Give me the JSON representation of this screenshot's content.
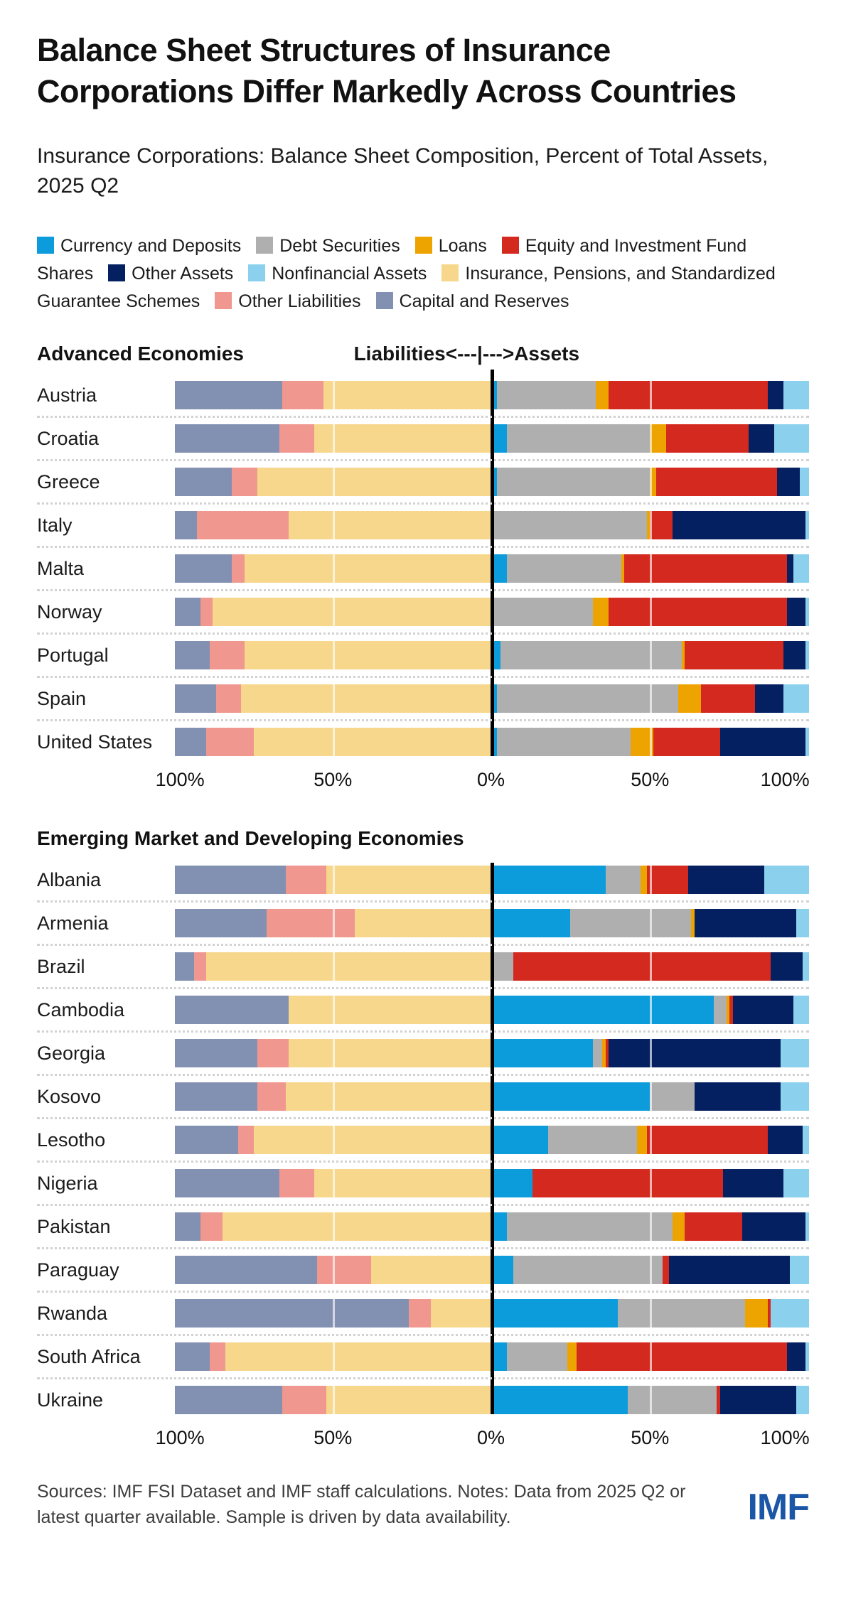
{
  "title": "Balance Sheet Structures of Insurance Corporations Differ Markedly Across Countries",
  "subtitle": "Insurance Corporations: Balance Sheet Composition, Percent of Total Assets, 2025 Q2",
  "legend": [
    {
      "key": "currency_deposits",
      "label": "Currency and Deposits",
      "color": "#0C9CDB"
    },
    {
      "key": "debt_securities",
      "label": "Debt Securities",
      "color": "#AFAFAF"
    },
    {
      "key": "loans",
      "label": "Loans",
      "color": "#EEA400"
    },
    {
      "key": "equity_investment",
      "label": "Equity and Investment Fund Shares",
      "color": "#D4291E"
    },
    {
      "key": "other_assets",
      "label": "Other Assets",
      "color": "#042061"
    },
    {
      "key": "nonfinancial_assets",
      "label": "Nonfinancial Assets",
      "color": "#8BD1EE"
    },
    {
      "key": "insurance_pensions",
      "label": "Insurance, Pensions, and Standardized Guarantee Schemes",
      "color": "#F7D78C"
    },
    {
      "key": "other_liabilities",
      "label": "Other Liabilities",
      "color": "#F0978F"
    },
    {
      "key": "capital_reserves",
      "label": "Capital and Reserves",
      "color": "#8290B2"
    }
  ],
  "center_axis_label": "Liabilities<---|--->Assets",
  "axis_ticks": [
    "100%",
    "50%",
    "0%",
    "50%",
    "100%"
  ],
  "chart_data": {
    "type": "bar",
    "variant": "diverging-stacked-horizontal",
    "unit": "percent of total assets",
    "xlim_liabilities": [
      100,
      0
    ],
    "xlim_assets": [
      0,
      100
    ],
    "grid": "50% white gridlines, black zero divider, dotted row separators",
    "liability_stack_order": [
      "capital_reserves",
      "other_liabilities",
      "insurance_pensions"
    ],
    "asset_stack_order": [
      "currency_deposits",
      "debt_securities",
      "loans",
      "equity_investment",
      "other_assets",
      "nonfinancial_assets"
    ],
    "groups": [
      {
        "name": "Advanced Economies",
        "rows": [
          {
            "country": "Austria",
            "liabilities": {
              "capital_reserves": 34,
              "other_liabilities": 13,
              "insurance_pensions": 53
            },
            "assets": {
              "currency_deposits": 2,
              "debt_securities": 31,
              "loans": 4,
              "equity_investment": 50,
              "other_assets": 5,
              "nonfinancial_assets": 8
            }
          },
          {
            "country": "Croatia",
            "liabilities": {
              "capital_reserves": 33,
              "other_liabilities": 11,
              "insurance_pensions": 56
            },
            "assets": {
              "currency_deposits": 5,
              "debt_securities": 45,
              "loans": 5,
              "equity_investment": 26,
              "other_assets": 8,
              "nonfinancial_assets": 11
            }
          },
          {
            "country": "Greece",
            "liabilities": {
              "capital_reserves": 18,
              "other_liabilities": 8,
              "insurance_pensions": 74
            },
            "assets": {
              "currency_deposits": 2,
              "debt_securities": 48,
              "loans": 2,
              "equity_investment": 38,
              "other_assets": 7,
              "nonfinancial_assets": 3
            }
          },
          {
            "country": "Italy",
            "liabilities": {
              "capital_reserves": 7,
              "other_liabilities": 29,
              "insurance_pensions": 64
            },
            "assets": {
              "currency_deposits": 1,
              "debt_securities": 48,
              "loans": 1,
              "equity_investment": 7,
              "other_assets": 42,
              "nonfinancial_assets": 1
            }
          },
          {
            "country": "Malta",
            "liabilities": {
              "capital_reserves": 18,
              "other_liabilities": 4,
              "insurance_pensions": 78
            },
            "assets": {
              "currency_deposits": 5,
              "debt_securities": 36,
              "loans": 1,
              "equity_investment": 51,
              "other_assets": 2,
              "nonfinancial_assets": 5
            }
          },
          {
            "country": "Norway",
            "liabilities": {
              "capital_reserves": 8,
              "other_liabilities": 4,
              "insurance_pensions": 88
            },
            "assets": {
              "currency_deposits": 1,
              "debt_securities": 31,
              "loans": 5,
              "equity_investment": 56,
              "other_assets": 6,
              "nonfinancial_assets": 1
            }
          },
          {
            "country": "Portugal",
            "liabilities": {
              "capital_reserves": 11,
              "other_liabilities": 11,
              "insurance_pensions": 78
            },
            "assets": {
              "currency_deposits": 3,
              "debt_securities": 57,
              "loans": 1,
              "equity_investment": 31,
              "other_assets": 7,
              "nonfinancial_assets": 1
            }
          },
          {
            "country": "Spain",
            "liabilities": {
              "capital_reserves": 13,
              "other_liabilities": 8,
              "insurance_pensions": 79
            },
            "assets": {
              "currency_deposits": 2,
              "debt_securities": 57,
              "loans": 7,
              "equity_investment": 17,
              "other_assets": 9,
              "nonfinancial_assets": 8
            }
          },
          {
            "country": "United States",
            "liabilities": {
              "capital_reserves": 10,
              "other_liabilities": 15,
              "insurance_pensions": 75
            },
            "assets": {
              "currency_deposits": 2,
              "debt_securities": 42,
              "loans": 7,
              "equity_investment": 21,
              "other_assets": 27,
              "nonfinancial_assets": 1
            }
          }
        ]
      },
      {
        "name": "Emerging Market and Developing Economies",
        "rows": [
          {
            "country": "Albania",
            "liabilities": {
              "capital_reserves": 35,
              "other_liabilities": 13,
              "insurance_pensions": 52
            },
            "assets": {
              "currency_deposits": 36,
              "debt_securities": 11,
              "loans": 2,
              "equity_investment": 13,
              "other_assets": 24,
              "nonfinancial_assets": 14
            }
          },
          {
            "country": "Armenia",
            "liabilities": {
              "capital_reserves": 29,
              "other_liabilities": 28,
              "insurance_pensions": 43
            },
            "assets": {
              "currency_deposits": 25,
              "debt_securities": 38,
              "loans": 1,
              "equity_investment": 0,
              "other_assets": 32,
              "nonfinancial_assets": 4
            }
          },
          {
            "country": "Brazil",
            "liabilities": {
              "capital_reserves": 6,
              "other_liabilities": 4,
              "insurance_pensions": 90
            },
            "assets": {
              "currency_deposits": 0,
              "debt_securities": 7,
              "loans": 0,
              "equity_investment": 81,
              "other_assets": 10,
              "nonfinancial_assets": 2
            }
          },
          {
            "country": "Cambodia",
            "liabilities": {
              "capital_reserves": 36,
              "other_liabilities": 0,
              "insurance_pensions": 64
            },
            "assets": {
              "currency_deposits": 70,
              "debt_securities": 4,
              "loans": 1,
              "equity_investment": 1,
              "other_assets": 19,
              "nonfinancial_assets": 5
            }
          },
          {
            "country": "Georgia",
            "liabilities": {
              "capital_reserves": 26,
              "other_liabilities": 10,
              "insurance_pensions": 64
            },
            "assets": {
              "currency_deposits": 32,
              "debt_securities": 3,
              "loans": 1,
              "equity_investment": 1,
              "other_assets": 54,
              "nonfinancial_assets": 9
            }
          },
          {
            "country": "Kosovo",
            "liabilities": {
              "capital_reserves": 26,
              "other_liabilities": 9,
              "insurance_pensions": 65
            },
            "assets": {
              "currency_deposits": 50,
              "debt_securities": 14,
              "loans": 0,
              "equity_investment": 0,
              "other_assets": 27,
              "nonfinancial_assets": 9
            }
          },
          {
            "country": "Lesotho",
            "liabilities": {
              "capital_reserves": 20,
              "other_liabilities": 5,
              "insurance_pensions": 75
            },
            "assets": {
              "currency_deposits": 18,
              "debt_securities": 28,
              "loans": 3,
              "equity_investment": 38,
              "other_assets": 11,
              "nonfinancial_assets": 2
            }
          },
          {
            "country": "Nigeria",
            "liabilities": {
              "capital_reserves": 33,
              "other_liabilities": 11,
              "insurance_pensions": 56
            },
            "assets": {
              "currency_deposits": 13,
              "debt_securities": 0,
              "loans": 0,
              "equity_investment": 60,
              "other_assets": 19,
              "nonfinancial_assets": 8
            }
          },
          {
            "country": "Pakistan",
            "liabilities": {
              "capital_reserves": 8,
              "other_liabilities": 7,
              "insurance_pensions": 85
            },
            "assets": {
              "currency_deposits": 5,
              "debt_securities": 52,
              "loans": 4,
              "equity_investment": 18,
              "other_assets": 20,
              "nonfinancial_assets": 1
            }
          },
          {
            "country": "Paraguay",
            "liabilities": {
              "capital_reserves": 45,
              "other_liabilities": 17,
              "insurance_pensions": 38
            },
            "assets": {
              "currency_deposits": 7,
              "debt_securities": 47,
              "loans": 0,
              "equity_investment": 2,
              "other_assets": 38,
              "nonfinancial_assets": 6
            }
          },
          {
            "country": "Rwanda",
            "liabilities": {
              "capital_reserves": 74,
              "other_liabilities": 7,
              "insurance_pensions": 19
            },
            "assets": {
              "currency_deposits": 40,
              "debt_securities": 40,
              "loans": 7,
              "equity_investment": 1,
              "other_assets": 0,
              "nonfinancial_assets": 12
            }
          },
          {
            "country": "South Africa",
            "liabilities": {
              "capital_reserves": 11,
              "other_liabilities": 5,
              "insurance_pensions": 84
            },
            "assets": {
              "currency_deposits": 5,
              "debt_securities": 19,
              "loans": 3,
              "equity_investment": 66,
              "other_assets": 6,
              "nonfinancial_assets": 1
            }
          },
          {
            "country": "Ukraine",
            "liabilities": {
              "capital_reserves": 34,
              "other_liabilities": 14,
              "insurance_pensions": 52
            },
            "assets": {
              "currency_deposits": 43,
              "debt_securities": 28,
              "loans": 0,
              "equity_investment": 1,
              "other_assets": 24,
              "nonfinancial_assets": 4
            }
          }
        ]
      }
    ]
  },
  "footer": {
    "note": "Sources: IMF FSI Dataset and IMF staff calculations. Notes: Data from 2025 Q2 or latest quarter available. Sample is driven by data availability.",
    "logo_text": "IMF"
  }
}
